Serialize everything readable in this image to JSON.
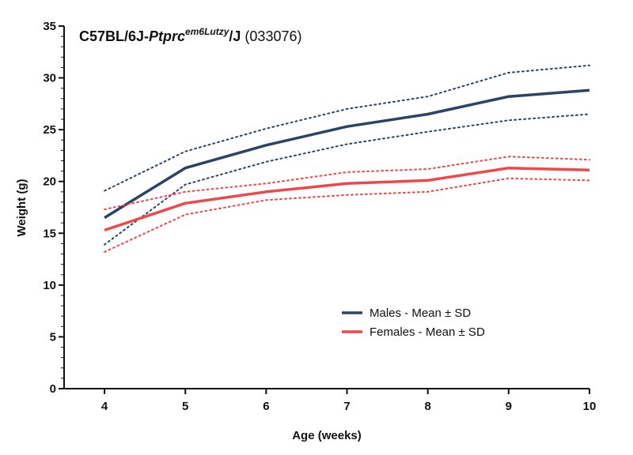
{
  "chart_data": {
    "type": "line",
    "title": {
      "main": "C57BL/6J-",
      "gene": "Ptprc",
      "allele": "em6Lutzy",
      "suffix": "/J",
      "stock": " (033076)"
    },
    "xlabel": "Age (weeks)",
    "ylabel": "Weight (g)",
    "x": [
      4,
      5,
      6,
      7,
      8,
      9,
      10
    ],
    "xlim": [
      3.5,
      10
    ],
    "ylim": [
      0,
      35
    ],
    "yticks": [
      0,
      5,
      10,
      15,
      20,
      25,
      30,
      35
    ],
    "xticks": [
      4,
      5,
      6,
      7,
      8,
      9,
      10
    ],
    "grid": false,
    "legend_position": "bottom-center",
    "series": [
      {
        "name": "Males - Mean ± SD",
        "color": "#2b4466",
        "mean": [
          16.5,
          21.3,
          23.5,
          25.3,
          26.5,
          28.2,
          28.8
        ],
        "upper": [
          19.1,
          22.9,
          25.1,
          27.0,
          28.2,
          30.5,
          31.2
        ],
        "lower": [
          13.9,
          19.7,
          21.9,
          23.6,
          24.8,
          25.9,
          26.5
        ]
      },
      {
        "name": "Females - Mean ± SD",
        "color": "#f0474b",
        "mean": [
          15.3,
          17.9,
          19.0,
          19.8,
          20.1,
          21.3,
          21.1
        ],
        "upper": [
          17.3,
          19.0,
          19.8,
          20.9,
          21.2,
          22.4,
          22.1
        ],
        "lower": [
          13.2,
          16.8,
          18.2,
          18.7,
          19.0,
          20.3,
          20.1
        ]
      }
    ]
  }
}
